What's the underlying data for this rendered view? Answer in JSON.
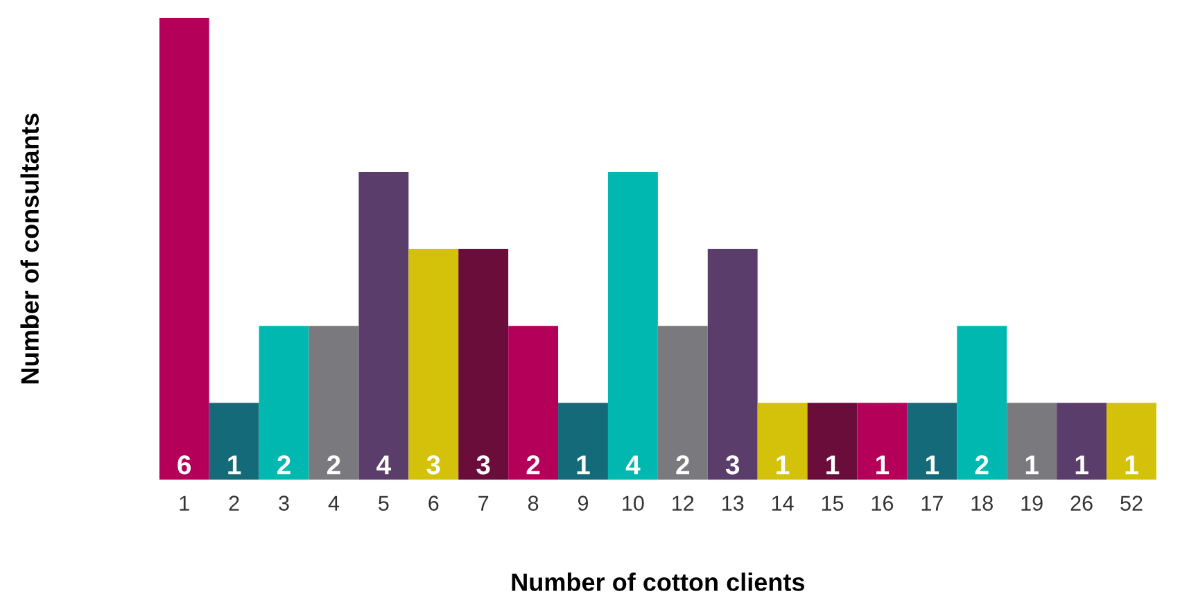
{
  "chart_data": {
    "type": "bar",
    "xlabel": "Number of cotton clients",
    "ylabel": "Number of consultants",
    "categories": [
      "1",
      "2",
      "3",
      "4",
      "5",
      "6",
      "7",
      "8",
      "9",
      "10",
      "12",
      "13",
      "14",
      "15",
      "16",
      "17",
      "18",
      "19",
      "26",
      "52"
    ],
    "values": [
      6,
      1,
      2,
      2,
      4,
      3,
      3,
      2,
      1,
      4,
      2,
      3,
      1,
      1,
      1,
      1,
      2,
      1,
      1,
      1
    ],
    "colors": [
      "#b5005a",
      "#156a7a",
      "#00b8b0",
      "#7a7a7e",
      "#5a3d6a",
      "#d4c20a",
      "#6a0d3a",
      "#b5005a",
      "#156a7a",
      "#00b8b0",
      "#7a7a7e",
      "#5a3d6a",
      "#d4c20a",
      "#6a0d3a",
      "#b5005a",
      "#156a7a",
      "#00b8b0",
      "#7a7a7e",
      "#5a3d6a",
      "#d4c20a"
    ],
    "data_labels": true,
    "grid": false,
    "legend": false
  }
}
